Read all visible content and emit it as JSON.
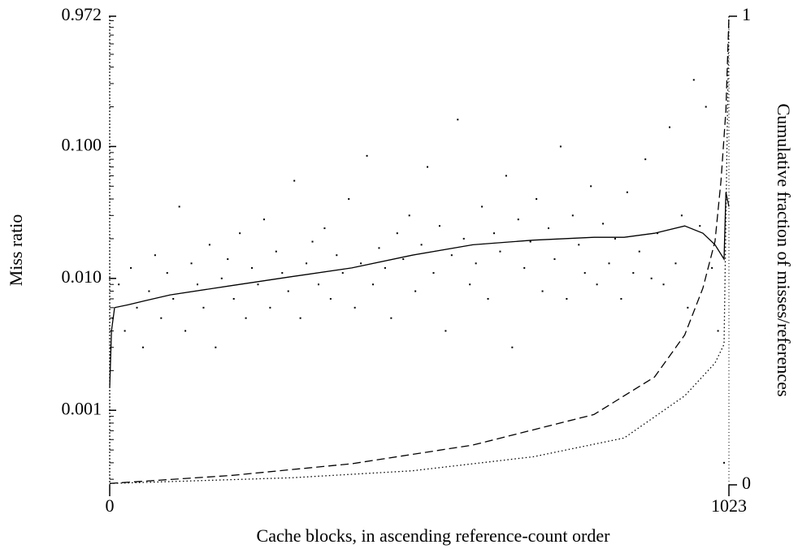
{
  "chart_data": {
    "type": "scatter",
    "x_label": "Cache blocks, in ascending reference-count order",
    "y_label": "Miss ratio",
    "y2_label": "Cumulative fraction of misses/references",
    "xlim": [
      0,
      1023
    ],
    "xticks": [
      0,
      1023
    ],
    "ylim": [
      0.00028,
      0.972
    ],
    "log_y": true,
    "yticks": [
      0.972,
      {
        "value": 0.1,
        "label": "0.100"
      },
      {
        "value": 0.01,
        "label": "0.010"
      },
      0.001
    ],
    "yminorticks": [
      0.0003,
      0.0004,
      0.0005,
      0.0006,
      0.0007,
      0.0008,
      0.0009,
      0.002,
      0.003,
      0.004,
      0.005,
      0.006,
      0.007,
      0.008,
      0.009,
      0.02,
      0.03,
      0.04,
      0.05,
      0.06,
      0.07,
      0.08,
      0.09,
      0.2,
      0.3,
      0.4,
      0.5,
      0.6,
      0.7,
      0.8,
      0.9
    ],
    "y2lim": [
      0,
      1
    ],
    "y2ticks": [
      0,
      1
    ],
    "color": "#000000",
    "series": [
      {
        "type": "scatter",
        "x": [
          5,
          15,
          25,
          35,
          45,
          55,
          65,
          75,
          85,
          95,
          105,
          115,
          125,
          135,
          145,
          155,
          165,
          175,
          185,
          195,
          205,
          215,
          225,
          235,
          245,
          255,
          265,
          275,
          285,
          295,
          305,
          315,
          325,
          335,
          345,
          355,
          365,
          375,
          385,
          395,
          405,
          415,
          425,
          435,
          445,
          455,
          465,
          475,
          485,
          495,
          505,
          515,
          525,
          535,
          545,
          555,
          565,
          575,
          585,
          595,
          605,
          615,
          625,
          635,
          645,
          655,
          665,
          675,
          685,
          695,
          705,
          715,
          725,
          735,
          745,
          755,
          765,
          775,
          785,
          795,
          805,
          815,
          825,
          835,
          845,
          855,
          865,
          875,
          885,
          895,
          905,
          915,
          925,
          935,
          945,
          955,
          965,
          975,
          985,
          995,
          1005,
          1015
        ],
        "values": [
          0.005,
          0.009,
          0.004,
          0.012,
          0.006,
          0.003,
          0.008,
          0.015,
          0.005,
          0.011,
          0.007,
          0.035,
          0.004,
          0.013,
          0.009,
          0.006,
          0.018,
          0.003,
          0.01,
          0.014,
          0.007,
          0.022,
          0.005,
          0.012,
          0.009,
          0.028,
          0.006,
          0.016,
          0.011,
          0.008,
          0.055,
          0.005,
          0.013,
          0.019,
          0.009,
          0.024,
          0.007,
          0.015,
          0.011,
          0.04,
          0.006,
          0.013,
          0.085,
          0.009,
          0.017,
          0.012,
          0.005,
          0.022,
          0.014,
          0.03,
          0.008,
          0.018,
          0.07,
          0.011,
          0.025,
          0.004,
          0.015,
          0.16,
          0.02,
          0.009,
          0.013,
          0.035,
          0.007,
          0.022,
          0.016,
          0.06,
          0.003,
          0.028,
          0.012,
          0.019,
          0.04,
          0.008,
          0.024,
          0.014,
          0.1,
          0.007,
          0.03,
          0.018,
          0.011,
          0.05,
          0.009,
          0.026,
          0.013,
          0.02,
          0.007,
          0.045,
          0.011,
          0.016,
          0.08,
          0.01,
          0.022,
          0.009,
          0.14,
          0.013,
          0.03,
          0.006,
          0.32,
          0.025,
          0.2,
          0.012,
          0.004,
          0.0004
        ]
      },
      {
        "type": "line",
        "style": "solid",
        "x": [
          0,
          3,
          8,
          30,
          60,
          100,
          200,
          300,
          400,
          500,
          600,
          700,
          800,
          850,
          900,
          950,
          980,
          1000,
          1015,
          1018,
          1023
        ],
        "values": [
          0.0015,
          0.004,
          0.006,
          0.0063,
          0.0068,
          0.0075,
          0.0088,
          0.0103,
          0.012,
          0.015,
          0.018,
          0.0195,
          0.0205,
          0.0205,
          0.022,
          0.025,
          0.022,
          0.018,
          0.014,
          0.045,
          0.035
        ]
      },
      {
        "type": "line",
        "style": "dashed",
        "axis": "y2",
        "x": [
          0,
          200,
          400,
          600,
          800,
          900,
          950,
          980,
          1000,
          1010,
          1018,
          1023
        ],
        "values": [
          0.003,
          0.02,
          0.045,
          0.085,
          0.15,
          0.23,
          0.32,
          0.42,
          0.52,
          0.65,
          0.8,
          1.0
        ]
      },
      {
        "type": "line",
        "style": "dotted",
        "axis": "y2",
        "x": [
          0,
          300,
          500,
          700,
          850,
          950,
          1000,
          1015,
          1023
        ],
        "values": [
          0.003,
          0.015,
          0.03,
          0.06,
          0.1,
          0.19,
          0.26,
          0.3,
          1.0
        ]
      }
    ]
  }
}
